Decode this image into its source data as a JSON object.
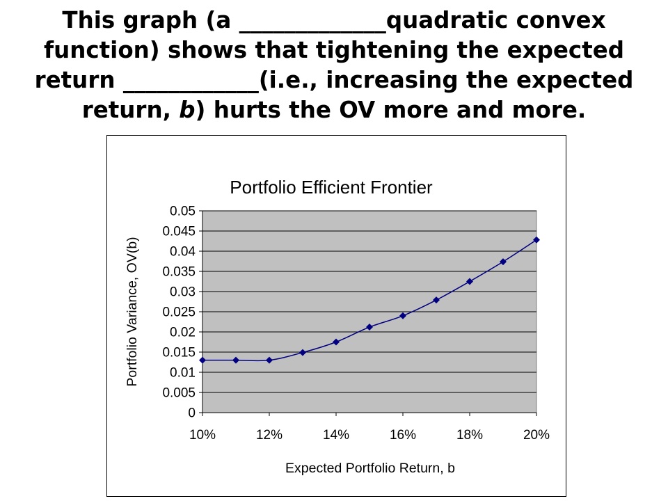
{
  "slide": {
    "title_line1_a": "This graph (a ",
    "title_line1_blank": "_____________",
    "title_line1_b": "quadratic convex",
    "title_line2": "function) shows that tightening the expected",
    "title_line3_a": "return ",
    "title_line3_blank": "____________",
    "title_line3_b": "(i.e., increasing the expected",
    "title_line4_a": "return, ",
    "title_line4_italic": "b",
    "title_line4_b": ") hurts the OV more and more."
  },
  "chart_data": {
    "type": "line",
    "title": "Portfolio Efficient Frontier",
    "xlabel": "Expected Portfolio Return, b",
    "ylabel": "Portfolio Variance, OV(b)",
    "x": [
      0.1,
      0.11,
      0.12,
      0.13,
      0.14,
      0.15,
      0.16,
      0.17,
      0.18,
      0.19,
      0.2
    ],
    "series": [
      {
        "values": [
          0.013,
          0.013,
          0.013,
          0.0149,
          0.0175,
          0.0212,
          0.024,
          0.0279,
          0.0325,
          0.0374,
          0.0428
        ]
      }
    ],
    "xlim": [
      0.1,
      0.2
    ],
    "ylim": [
      0,
      0.05
    ],
    "x_ticks": [
      0.1,
      0.12,
      0.14,
      0.16,
      0.18,
      0.2
    ],
    "x_tick_labels": [
      "10%",
      "12%",
      "14%",
      "16%",
      "18%",
      "20%"
    ],
    "y_ticks": [
      0,
      0.005,
      0.01,
      0.015,
      0.02,
      0.025,
      0.03,
      0.035,
      0.04,
      0.045,
      0.05
    ],
    "y_tick_labels": [
      "0",
      "0.005",
      "0.01",
      "0.015",
      "0.02",
      "0.025",
      "0.03",
      "0.035",
      "0.04",
      "0.045",
      "0.05"
    ],
    "grid": true,
    "legend": "none",
    "colors": {
      "line": "#000080",
      "marker": "#000080",
      "plot_background": "#c0c0c0",
      "gridline": "#000000"
    },
    "marker": "diamond"
  }
}
